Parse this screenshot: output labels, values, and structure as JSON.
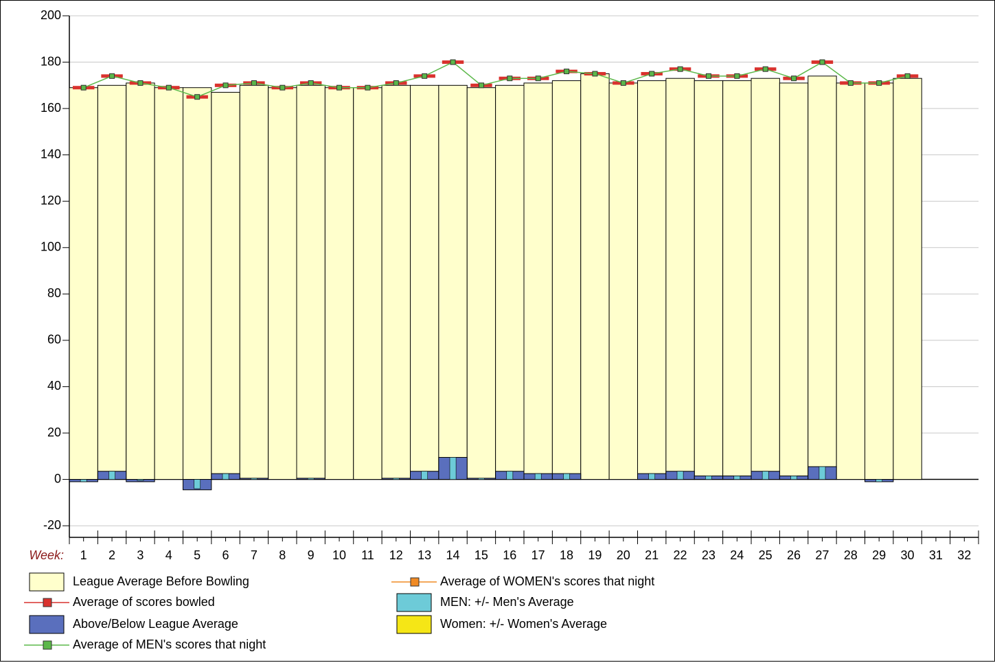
{
  "chart_data": {
    "type": "bar",
    "xlabel": "Week:",
    "categories": [
      "1",
      "2",
      "3",
      "4",
      "5",
      "6",
      "7",
      "8",
      "9",
      "10",
      "11",
      "12",
      "13",
      "14",
      "15",
      "16",
      "17",
      "18",
      "19",
      "20",
      "21",
      "22",
      "23",
      "24",
      "25",
      "26",
      "27",
      "28",
      "29",
      "30",
      "31",
      "32"
    ],
    "ylim": [
      -25,
      200
    ],
    "yticks": [
      -20,
      0,
      20,
      40,
      60,
      80,
      100,
      120,
      140,
      160,
      180,
      200
    ],
    "grid": true,
    "series": [
      {
        "name": "League Average Before Bowling",
        "kind": "bar",
        "color": "#ffffcc",
        "values": [
          169,
          170,
          171,
          169,
          169,
          167,
          170,
          169,
          170,
          169,
          169,
          170,
          170,
          170,
          169,
          170,
          171,
          172,
          175,
          171,
          172,
          173,
          172,
          172,
          173,
          171,
          174,
          171,
          171,
          173,
          null,
          null
        ]
      },
      {
        "name": "Average of scores bowled",
        "kind": "dash",
        "color": "#d9322e",
        "values": [
          169,
          174,
          171,
          169,
          165,
          170,
          171,
          169,
          171,
          169,
          169,
          171,
          174,
          180,
          170,
          173,
          173,
          176,
          175,
          171,
          175,
          177,
          174,
          174,
          177,
          173,
          180,
          171,
          171,
          174,
          null,
          null
        ]
      },
      {
        "name": "Above/Below League Average",
        "kind": "bar",
        "color": "#5a6fbd",
        "values": [
          -1,
          3.5,
          -1,
          0,
          -4.5,
          2.5,
          0.5,
          0,
          0.5,
          0,
          0,
          0.5,
          3.5,
          9.5,
          0.5,
          3.5,
          2.5,
          2.5,
          0,
          0,
          2.5,
          3.5,
          1.5,
          1.5,
          3.5,
          1.5,
          5.5,
          0,
          -1,
          0,
          null,
          null
        ]
      },
      {
        "name": "Average of MEN's scores that night",
        "kind": "line",
        "color": "#5cb84a",
        "values": [
          169,
          174,
          171,
          169,
          165,
          170,
          171,
          169,
          171,
          169,
          169,
          171,
          174,
          180,
          170,
          173,
          173,
          176,
          175,
          171,
          175,
          177,
          174,
          174,
          177,
          173,
          180,
          171,
          171,
          174,
          null,
          null
        ]
      },
      {
        "name": "Average of WOMEN's scores that night",
        "kind": "line",
        "color": "#f08a24",
        "values": [
          null,
          null,
          null,
          null,
          null,
          null,
          null,
          null,
          null,
          null,
          null,
          null,
          null,
          null,
          null,
          null,
          null,
          null,
          null,
          null,
          null,
          null,
          null,
          null,
          null,
          null,
          null,
          null,
          null,
          null,
          null,
          null
        ]
      },
      {
        "name": "MEN: +/- Men's Average",
        "kind": "narrow-bar",
        "color": "#6dcbd8",
        "values": [
          -1,
          3.5,
          -0.5,
          0,
          -4,
          2.5,
          0.5,
          0,
          0.5,
          0,
          0,
          0.5,
          3.5,
          9.5,
          0.5,
          3.5,
          2.5,
          2.5,
          0,
          0,
          2.5,
          3.5,
          1.5,
          1.5,
          3.5,
          1.5,
          5.5,
          0,
          -1,
          0,
          null,
          null
        ]
      },
      {
        "name": "Women: +/- Women's Average",
        "kind": "narrow-bar",
        "color": "#f5e616",
        "values": [
          null,
          null,
          null,
          null,
          null,
          null,
          null,
          null,
          null,
          null,
          null,
          null,
          null,
          null,
          null,
          null,
          null,
          null,
          null,
          null,
          null,
          null,
          null,
          null,
          null,
          null,
          null,
          null,
          null,
          null,
          null,
          null
        ]
      }
    ]
  }
}
